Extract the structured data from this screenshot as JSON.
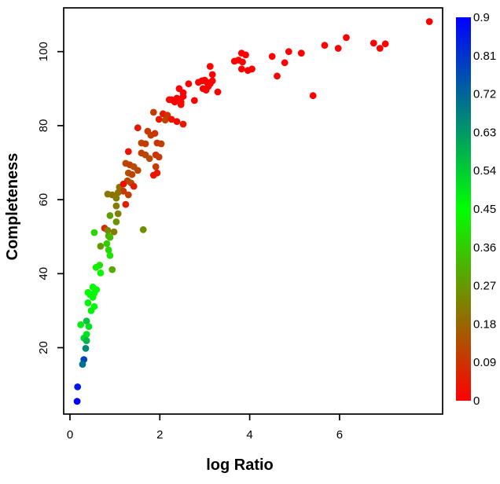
{
  "chart_data": {
    "type": "scatter",
    "title": "",
    "xlabel": "log Ratio",
    "ylabel": "Completeness",
    "xlim": [
      -0.15,
      8.3
    ],
    "ylim": [
      2,
      112
    ],
    "x_ticks": [
      "0",
      "2",
      "4",
      "6"
    ],
    "x_tick_values": [
      0,
      2,
      4,
      6
    ],
    "y_ticks": [
      "20",
      "40",
      "60",
      "80",
      "100"
    ],
    "y_tick_values": [
      20,
      40,
      60,
      80,
      100
    ],
    "grid": false,
    "legend_position": "right-colorbar",
    "colorbar": {
      "min": 0,
      "max": 0.9,
      "tick_labels": [
        "0.9",
        "0.81",
        "0.72",
        "0.63",
        "0.54",
        "0.45",
        "0.36",
        "0.27",
        "0.18",
        "0.09",
        "0"
      ],
      "low_color": "#FF0000",
      "mid_color": "#00FF00",
      "high_color": "#0000FF",
      "mapping": "linear RGB interpolation: 0=red, 0.45=green, 0.9=blue"
    },
    "point_format": "[log_ratio, completeness, color_value]",
    "points": [
      [
        8.0,
        108.1,
        0
      ],
      [
        6.15,
        103.8,
        0
      ],
      [
        6.76,
        102.3,
        0
      ],
      [
        7.02,
        102.1,
        0
      ],
      [
        6.9,
        100.9,
        0
      ],
      [
        5.67,
        101.7,
        0
      ],
      [
        5.97,
        100.9,
        0
      ],
      [
        4.5,
        98.7,
        0
      ],
      [
        4.87,
        100.0,
        0
      ],
      [
        5.15,
        99.6,
        0
      ],
      [
        4.78,
        97.0,
        0
      ],
      [
        4.61,
        93.4,
        0
      ],
      [
        5.41,
        88.1,
        0
      ],
      [
        3.82,
        99.6,
        0
      ],
      [
        3.91,
        99.1,
        0
      ],
      [
        3.66,
        97.4,
        0
      ],
      [
        3.75,
        97.7,
        0
      ],
      [
        3.84,
        97.2,
        0
      ],
      [
        3.82,
        95.3,
        0
      ],
      [
        3.96,
        94.9,
        0
      ],
      [
        4.05,
        95.3,
        0
      ],
      [
        3.12,
        96.0,
        0
      ],
      [
        3.17,
        93.8,
        0
      ],
      [
        2.64,
        91.3,
        0
      ],
      [
        2.86,
        91.7,
        0
      ],
      [
        2.94,
        92.1,
        0
      ],
      [
        3.0,
        92.3,
        0
      ],
      [
        3.05,
        91.7,
        0
      ],
      [
        3.12,
        91.3,
        0
      ],
      [
        3.17,
        92.1,
        0
      ],
      [
        2.96,
        90.0,
        0
      ],
      [
        3.03,
        89.6,
        0
      ],
      [
        3.08,
        90.6,
        0
      ],
      [
        3.29,
        89.1,
        0
      ],
      [
        2.43,
        90.0,
        0
      ],
      [
        2.52,
        88.9,
        0
      ],
      [
        2.38,
        87.4,
        0
      ],
      [
        2.47,
        86.4,
        0
      ],
      [
        2.77,
        86.8,
        0
      ],
      [
        2.26,
        87.0,
        0
      ],
      [
        2.52,
        87.9,
        0
      ],
      [
        2.21,
        87.0,
        0.02
      ],
      [
        2.33,
        86.4,
        0
      ],
      [
        2.47,
        85.7,
        0.02
      ],
      [
        1.86,
        83.6,
        0.1
      ],
      [
        2.07,
        83.2,
        0.04
      ],
      [
        2.17,
        82.8,
        0.09
      ],
      [
        1.98,
        81.7,
        0.05
      ],
      [
        2.12,
        81.5,
        0.12
      ],
      [
        2.26,
        81.7,
        0.03
      ],
      [
        2.38,
        81.1,
        0.02
      ],
      [
        2.52,
        80.4,
        0.05
      ],
      [
        1.51,
        79.4,
        0.04
      ],
      [
        1.73,
        78.5,
        0.1
      ],
      [
        1.8,
        77.4,
        0.11
      ],
      [
        1.89,
        77.9,
        0.09
      ],
      [
        1.59,
        75.3,
        0.12
      ],
      [
        1.68,
        75.1,
        0.1
      ],
      [
        1.94,
        75.3,
        0.09
      ],
      [
        2.03,
        75.1,
        0.11
      ],
      [
        1.3,
        73.0,
        0.03
      ],
      [
        1.59,
        72.6,
        0.11
      ],
      [
        1.68,
        72.1,
        0.12
      ],
      [
        1.77,
        71.1,
        0.13
      ],
      [
        1.91,
        72.1,
        0.09
      ],
      [
        1.98,
        71.5,
        0.1
      ],
      [
        1.24,
        69.8,
        0.12
      ],
      [
        1.33,
        69.4,
        0.11
      ],
      [
        1.42,
        68.9,
        0.13
      ],
      [
        1.51,
        67.9,
        0.12
      ],
      [
        1.3,
        67.2,
        0.14
      ],
      [
        1.38,
        66.8,
        0.12
      ],
      [
        1.91,
        68.9,
        0.1
      ],
      [
        1.94,
        67.2,
        0.04
      ],
      [
        1.86,
        66.6,
        0.03
      ],
      [
        1.28,
        65.1,
        0.12
      ],
      [
        1.36,
        64.5,
        0.13
      ],
      [
        1.42,
        63.6,
        0.05
      ],
      [
        1.1,
        63.4,
        0.2
      ],
      [
        1.19,
        62.3,
        0.1
      ],
      [
        1.3,
        61.3,
        0.11
      ],
      [
        0.94,
        61.3,
        0.2
      ],
      [
        1.03,
        60.4,
        0.22
      ],
      [
        0.84,
        61.5,
        0.21
      ],
      [
        1.19,
        64.2,
        0.03
      ],
      [
        1.07,
        61.9,
        0.2
      ],
      [
        1.24,
        58.7,
        0.05
      ],
      [
        1.03,
        58.3,
        0.22
      ],
      [
        1.07,
        56.2,
        0.23
      ],
      [
        0.89,
        55.7,
        0.28
      ],
      [
        1.03,
        54.0,
        0.26
      ],
      [
        0.77,
        52.3,
        0.07
      ],
      [
        0.84,
        51.7,
        0.24
      ],
      [
        0.98,
        51.3,
        0.22
      ],
      [
        1.63,
        51.9,
        0.25
      ],
      [
        0.54,
        51.1,
        0.38
      ],
      [
        0.86,
        50.2,
        0.3
      ],
      [
        0.89,
        49.8,
        0.33
      ],
      [
        0.68,
        47.4,
        0.27
      ],
      [
        0.82,
        48.1,
        0.36
      ],
      [
        0.86,
        46.4,
        0.38
      ],
      [
        0.89,
        44.9,
        0.4
      ],
      [
        0.66,
        42.3,
        0.4
      ],
      [
        0.58,
        41.7,
        0.42
      ],
      [
        0.94,
        41.1,
        0.3
      ],
      [
        0.68,
        40.2,
        0.44
      ],
      [
        0.51,
        36.4,
        0.44
      ],
      [
        0.59,
        35.7,
        0.44
      ],
      [
        0.54,
        34.7,
        0.45
      ],
      [
        0.45,
        34.3,
        0.44
      ],
      [
        0.4,
        34.9,
        0.45
      ],
      [
        0.51,
        33.6,
        0.46
      ],
      [
        0.4,
        32.1,
        0.47
      ],
      [
        0.54,
        31.1,
        0.46
      ],
      [
        0.47,
        30.0,
        0.47
      ],
      [
        0.37,
        27.2,
        0.55
      ],
      [
        0.24,
        26.2,
        0.48
      ],
      [
        0.42,
        25.7,
        0.5
      ],
      [
        0.37,
        23.6,
        0.5
      ],
      [
        0.31,
        22.6,
        0.52
      ],
      [
        0.37,
        21.9,
        0.58
      ],
      [
        0.35,
        19.8,
        0.66
      ],
      [
        0.31,
        16.8,
        0.78
      ],
      [
        0.28,
        15.5,
        0.7
      ],
      [
        0.17,
        9.4,
        0.86
      ],
      [
        0.16,
        5.5,
        0.9
      ]
    ]
  }
}
